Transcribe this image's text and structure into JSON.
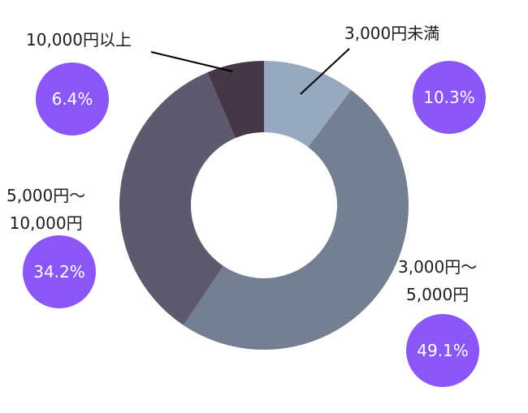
{
  "chart_data": {
    "type": "pie",
    "donut": true,
    "categories": [
      "3,000円未満",
      "3,000円〜5,000円",
      "5,000円〜10,000円",
      "10,000円以上"
    ],
    "label_lines": [
      [
        "3,000円未満"
      ],
      [
        "3,000円〜",
        "5,000円"
      ],
      [
        "5,000円〜",
        "10,000円"
      ],
      [
        "10,000円以上"
      ]
    ],
    "values": [
      10.3,
      49.1,
      34.2,
      6.4
    ],
    "value_labels": [
      "10.3%",
      "49.1%",
      "34.2%",
      "6.4%"
    ],
    "colors": [
      "#97a9be",
      "#757f92",
      "#5d5a6e",
      "#463748"
    ],
    "badge_color": "#8b56f6",
    "legend": "none"
  }
}
